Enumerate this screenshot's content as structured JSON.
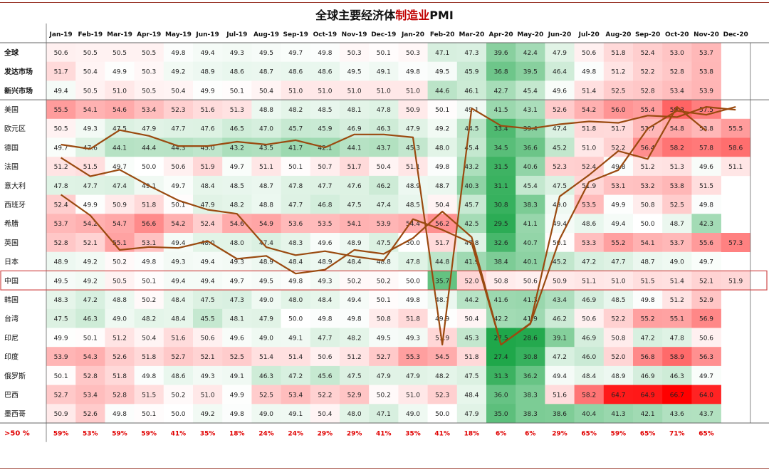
{
  "title_part1": "全球主要经济体",
  "title_part2": "制造业",
  "title_part3": "PMI",
  "chart_data": {
    "type": "heatmap",
    "title": "全球主要经济体制造业PMI",
    "columns": [
      "Jan-19",
      "Feb-19",
      "Mar-19",
      "Apr-19",
      "May-19",
      "Jun-19",
      "Jul-19",
      "Aug-19",
      "Sep-19",
      "Oct-19",
      "Nov-19",
      "Dec-19",
      "Jan-20",
      "Feb-20",
      "Mar-20",
      "Apr-20",
      "May-20",
      "Jun-20",
      "Jul-20",
      "Aug-20",
      "Sep-20",
      "Oct-20",
      "Nov-20",
      "Dec-20"
    ],
    "rows": [
      {
        "name": "全球",
        "bold": true,
        "values": [
          50.6,
          50.5,
          50.5,
          50.5,
          49.8,
          49.4,
          49.3,
          49.5,
          49.7,
          49.8,
          50.3,
          50.1,
          50.3,
          47.1,
          47.3,
          39.6,
          42.4,
          47.9,
          50.6,
          51.8,
          52.4,
          53.0,
          53.7,
          null
        ]
      },
      {
        "name": "发达市场",
        "bold": true,
        "values": [
          51.7,
          50.4,
          49.9,
          50.3,
          49.2,
          48.9,
          48.6,
          48.7,
          48.6,
          48.6,
          49.5,
          49.1,
          49.8,
          49.5,
          45.9,
          36.8,
          39.5,
          46.4,
          49.8,
          51.2,
          52.2,
          52.8,
          53.8,
          null
        ]
      },
      {
        "name": "新兴市场",
        "bold": true,
        "values": [
          49.4,
          50.5,
          51.0,
          50.5,
          50.4,
          49.9,
          50.1,
          50.4,
          51.0,
          51.0,
          51.0,
          51.0,
          51.0,
          44.6,
          46.1,
          42.7,
          45.4,
          49.6,
          51.4,
          52.5,
          52.8,
          53.4,
          53.9,
          null
        ]
      },
      {
        "name": "美国",
        "bold": false,
        "values": [
          55.5,
          54.1,
          54.6,
          53.4,
          52.3,
          51.6,
          51.3,
          48.8,
          48.2,
          48.5,
          48.1,
          47.8,
          50.9,
          50.1,
          49.1,
          41.5,
          43.1,
          52.6,
          54.2,
          56.0,
          55.4,
          59.3,
          57.5,
          null
        ]
      },
      {
        "name": "欧元区",
        "bold": false,
        "values": [
          50.5,
          49.3,
          47.5,
          47.9,
          47.7,
          47.6,
          46.5,
          47.0,
          45.7,
          45.9,
          46.9,
          46.3,
          47.9,
          49.2,
          44.5,
          33.4,
          39.4,
          47.4,
          51.8,
          51.7,
          53.7,
          54.8,
          53.8,
          55.5
        ]
      },
      {
        "name": "德国",
        "bold": false,
        "values": [
          49.7,
          47.6,
          44.1,
          44.4,
          44.3,
          45.0,
          43.2,
          43.5,
          41.7,
          42.1,
          44.1,
          43.7,
          45.3,
          48.0,
          45.4,
          34.5,
          36.6,
          45.2,
          51.0,
          52.2,
          56.4,
          58.2,
          57.8,
          58.6
        ]
      },
      {
        "name": "法国",
        "bold": false,
        "values": [
          51.2,
          51.5,
          49.7,
          50.0,
          50.6,
          51.9,
          49.7,
          51.1,
          50.1,
          50.7,
          51.7,
          50.4,
          51.1,
          49.8,
          43.2,
          31.5,
          40.6,
          52.3,
          52.4,
          49.8,
          51.2,
          51.3,
          49.6,
          51.1
        ]
      },
      {
        "name": "意大利",
        "bold": false,
        "values": [
          47.8,
          47.7,
          47.4,
          49.1,
          49.7,
          48.4,
          48.5,
          48.7,
          47.8,
          47.7,
          47.6,
          46.2,
          48.9,
          48.7,
          40.3,
          31.1,
          45.4,
          47.5,
          51.9,
          53.1,
          53.2,
          53.8,
          51.5,
          null
        ]
      },
      {
        "name": "西班牙",
        "bold": false,
        "values": [
          52.4,
          49.9,
          50.9,
          51.8,
          50.1,
          47.9,
          48.2,
          48.8,
          47.7,
          46.8,
          47.5,
          47.4,
          48.5,
          50.4,
          45.7,
          30.8,
          38.3,
          49.0,
          53.5,
          49.9,
          50.8,
          52.5,
          49.8,
          null
        ]
      },
      {
        "name": "希腊",
        "bold": false,
        "values": [
          53.7,
          54.2,
          54.7,
          56.6,
          54.2,
          52.4,
          54.6,
          54.9,
          53.6,
          53.5,
          54.1,
          53.9,
          54.4,
          56.2,
          42.5,
          29.5,
          41.1,
          49.4,
          48.6,
          49.4,
          50.0,
          48.7,
          42.3,
          null
        ]
      },
      {
        "name": "英国",
        "bold": false,
        "values": [
          52.8,
          52.1,
          55.1,
          53.1,
          49.4,
          48.0,
          48.0,
          47.4,
          48.3,
          49.6,
          48.9,
          47.5,
          50.0,
          51.7,
          47.8,
          32.6,
          40.7,
          50.1,
          53.3,
          55.2,
          54.1,
          53.7,
          55.6,
          57.3
        ]
      },
      {
        "name": "日本",
        "bold": false,
        "values": [
          48.9,
          49.2,
          50.2,
          49.8,
          49.3,
          49.4,
          49.3,
          48.9,
          48.4,
          48.9,
          48.4,
          48.8,
          47.8,
          44.8,
          41.9,
          38.4,
          40.1,
          45.2,
          47.2,
          47.7,
          48.7,
          49.0,
          49.7,
          null
        ]
      },
      {
        "name": "中国",
        "bold": false,
        "values": [
          49.5,
          49.2,
          50.5,
          50.1,
          49.4,
          49.4,
          49.7,
          49.5,
          49.8,
          49.3,
          50.2,
          50.2,
          50.0,
          35.7,
          52.0,
          50.8,
          50.6,
          50.9,
          51.1,
          51.0,
          51.5,
          51.4,
          52.1,
          51.9
        ]
      },
      {
        "name": "韩国",
        "bold": false,
        "values": [
          48.3,
          47.2,
          48.8,
          50.2,
          48.4,
          47.5,
          47.3,
          49.0,
          48.0,
          48.4,
          49.4,
          50.1,
          49.8,
          48.7,
          44.2,
          41.6,
          41.3,
          43.4,
          46.9,
          48.5,
          49.8,
          51.2,
          52.9,
          null
        ]
      },
      {
        "name": "台湾",
        "bold": false,
        "values": [
          47.5,
          46.3,
          49.0,
          48.2,
          48.4,
          45.5,
          48.1,
          47.9,
          50.0,
          49.8,
          49.8,
          50.8,
          51.8,
          49.9,
          50.4,
          42.2,
          41.9,
          46.2,
          50.6,
          52.2,
          55.2,
          55.1,
          56.9,
          null
        ]
      },
      {
        "name": "印尼",
        "bold": false,
        "values": [
          49.9,
          50.1,
          51.2,
          50.4,
          51.6,
          50.6,
          49.6,
          49.0,
          49.1,
          47.7,
          48.2,
          49.5,
          49.3,
          51.9,
          45.3,
          27.5,
          28.6,
          39.1,
          46.9,
          50.8,
          47.2,
          47.8,
          50.6,
          null
        ]
      },
      {
        "name": "印度",
        "bold": false,
        "values": [
          53.9,
          54.3,
          52.6,
          51.8,
          52.7,
          52.1,
          52.5,
          51.4,
          51.4,
          50.6,
          51.2,
          52.7,
          55.3,
          54.5,
          51.8,
          27.4,
          30.8,
          47.2,
          46.0,
          52.0,
          56.8,
          58.9,
          56.3,
          null
        ]
      },
      {
        "name": "俄罗斯",
        "bold": false,
        "values": [
          50.1,
          52.8,
          51.8,
          49.8,
          48.6,
          49.3,
          49.1,
          46.3,
          47.2,
          45.6,
          47.5,
          47.9,
          47.9,
          48.2,
          47.5,
          31.3,
          36.2,
          49.4,
          48.4,
          48.9,
          46.9,
          46.3,
          49.7,
          null
        ]
      },
      {
        "name": "巴西",
        "bold": false,
        "values": [
          52.7,
          53.4,
          52.8,
          51.5,
          50.2,
          51.0,
          49.9,
          52.5,
          53.4,
          52.2,
          52.9,
          50.2,
          51.0,
          52.3,
          48.4,
          36.0,
          38.3,
          51.6,
          58.2,
          64.7,
          64.9,
          66.7,
          64.0,
          null
        ]
      },
      {
        "name": "墨西哥",
        "bold": false,
        "values": [
          50.9,
          52.6,
          49.8,
          50.1,
          50.0,
          49.2,
          49.8,
          49.0,
          49.1,
          50.4,
          48.0,
          47.1,
          49.0,
          50.0,
          47.9,
          35.0,
          38.3,
          38.6,
          40.4,
          41.3,
          42.1,
          43.6,
          43.7,
          null
        ]
      }
    ],
    "summary_row": {
      "label": ">50 %",
      "values": [
        "59%",
        "53%",
        "59%",
        "59%",
        "41%",
        "35%",
        "18%",
        "24%",
        "24%",
        "29%",
        "29%",
        "41%",
        "35%",
        "41%",
        "18%",
        "6%",
        "6%",
        "29%",
        "65%",
        "59%",
        "65%",
        "71%",
        "65%",
        ""
      ]
    },
    "highlight_row": "中国",
    "overlay_lines": [
      {
        "row": "德国",
        "color": "#9a4a10"
      },
      {
        "row": "中国",
        "color": "#9a4a10"
      },
      {
        "row": "美国",
        "color": "#9a4a10"
      }
    ],
    "color_scale": {
      "low": "#1fa74a",
      "mid": "#ffffff",
      "high": "#ff0000"
    }
  }
}
